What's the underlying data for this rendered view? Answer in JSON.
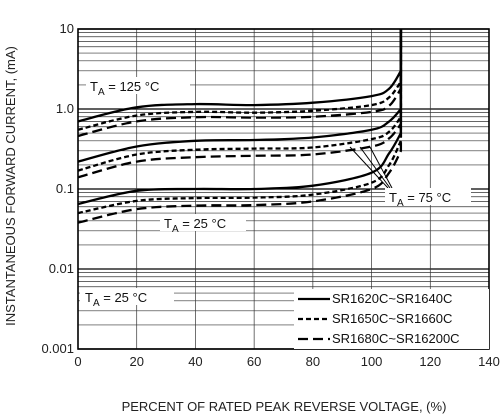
{
  "chart_data": {
    "type": "line",
    "title": "",
    "xlabel": "PERCENT OF RATED PEAK REVERSE VOLTAGE, (%)",
    "ylabel": "INSTANTANEOUS FORWARD CURRENT, (mA)",
    "x_ticks": [
      "0",
      "20",
      "40",
      "60",
      "80",
      "100",
      "120",
      "140"
    ],
    "y_ticks": [
      "0.001",
      "0.01",
      "0.1",
      "1.0",
      "10"
    ],
    "xlim": [
      0,
      140
    ],
    "ylim": [
      0.001,
      10
    ],
    "y_scale": "log",
    "grid": true,
    "annotations": {
      "t125": "T_A = 125 °C",
      "t75": "T_A = 75 °C",
      "t25_top": "T_A = 25 °C",
      "t25_legend": "T_A = 25 °C"
    },
    "legend": {
      "placement": "bottom-right",
      "entries": [
        {
          "label": "SR1620C~SR1640C",
          "style": "solid"
        },
        {
          "label": "SR1650C~SR1660C",
          "style": "dotted"
        },
        {
          "label": "SR1680C~SR16200C",
          "style": "dashed"
        }
      ]
    },
    "series": [
      {
        "group": "125C",
        "style": "solid",
        "x": [
          0,
          20,
          40,
          60,
          80,
          100,
          106,
          110,
          110
        ],
        "y": [
          0.7,
          1.05,
          1.15,
          1.12,
          1.2,
          1.45,
          1.8,
          3,
          10
        ]
      },
      {
        "group": "125C",
        "style": "dotted",
        "x": [
          0,
          20,
          40,
          60,
          80,
          100,
          106,
          110,
          110
        ],
        "y": [
          0.55,
          0.83,
          0.92,
          0.9,
          0.95,
          1.12,
          1.4,
          2.2,
          10
        ]
      },
      {
        "group": "125C",
        "style": "dashed",
        "x": [
          0,
          20,
          40,
          60,
          80,
          100,
          106,
          110,
          110
        ],
        "y": [
          0.46,
          0.7,
          0.79,
          0.78,
          0.8,
          0.92,
          1.1,
          1.8,
          10
        ]
      },
      {
        "group": "75C",
        "style": "solid",
        "x": [
          0,
          20,
          40,
          60,
          80,
          100,
          106,
          110,
          110
        ],
        "y": [
          0.22,
          0.34,
          0.4,
          0.41,
          0.44,
          0.55,
          0.7,
          1.0,
          10
        ]
      },
      {
        "group": "75C",
        "style": "dotted",
        "x": [
          0,
          20,
          40,
          60,
          80,
          100,
          106,
          110,
          110
        ],
        "y": [
          0.17,
          0.27,
          0.31,
          0.32,
          0.33,
          0.42,
          0.52,
          0.8,
          10
        ]
      },
      {
        "group": "75C",
        "style": "dashed",
        "x": [
          0,
          20,
          40,
          60,
          80,
          100,
          106,
          110,
          110
        ],
        "y": [
          0.14,
          0.22,
          0.25,
          0.26,
          0.27,
          0.34,
          0.43,
          0.65,
          10
        ]
      },
      {
        "group": "25C",
        "style": "solid",
        "x": [
          0,
          20,
          40,
          60,
          80,
          100,
          106,
          110,
          110
        ],
        "y": [
          0.065,
          0.095,
          0.1,
          0.1,
          0.11,
          0.16,
          0.28,
          0.5,
          10
        ]
      },
      {
        "group": "25C",
        "style": "dotted",
        "x": [
          0,
          20,
          40,
          60,
          80,
          100,
          106,
          110,
          110
        ],
        "y": [
          0.05,
          0.071,
          0.077,
          0.078,
          0.085,
          0.12,
          0.2,
          0.4,
          10
        ]
      },
      {
        "group": "25C",
        "style": "dashed",
        "x": [
          0,
          20,
          40,
          60,
          80,
          100,
          106,
          110,
          110
        ],
        "y": [
          0.038,
          0.056,
          0.062,
          0.063,
          0.07,
          0.1,
          0.16,
          0.3,
          10
        ]
      }
    ]
  }
}
